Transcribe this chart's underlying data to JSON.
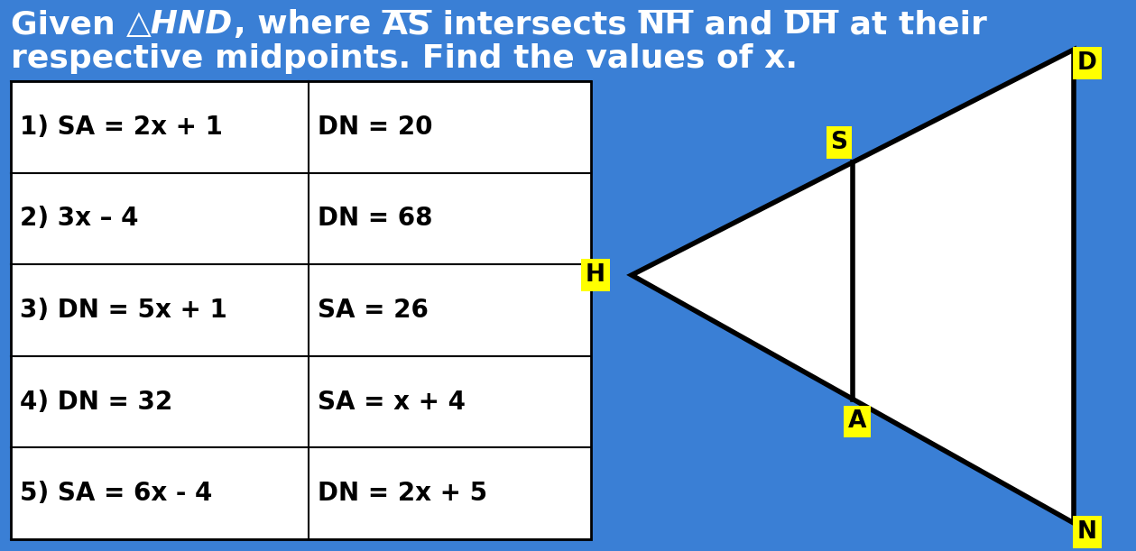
{
  "bg_color": "#3a7fd5",
  "table_rows": [
    [
      "1) SA = 2x + 1",
      "DN = 20"
    ],
    [
      "2) 3x – 4",
      "DN = 68"
    ],
    [
      "3) DN = 5x + 1",
      "SA = 26"
    ],
    [
      "4) DN = 32",
      "SA = x + 4"
    ],
    [
      "5) SA = 6x - 4",
      "DN = 2x + 5"
    ]
  ],
  "label_color": "#ffff00",
  "line1_parts": [
    [
      "Given ",
      false,
      false
    ],
    [
      "△HND",
      false,
      true
    ],
    [
      ", where ",
      false,
      false
    ],
    [
      "AS",
      true,
      false
    ],
    [
      " intersects ",
      false,
      false
    ],
    [
      "NH",
      true,
      false
    ],
    [
      " and ",
      false,
      false
    ],
    [
      "DH",
      true,
      false
    ],
    [
      " at their",
      false,
      false
    ]
  ],
  "line2": "respective midpoints. Find the values of x."
}
